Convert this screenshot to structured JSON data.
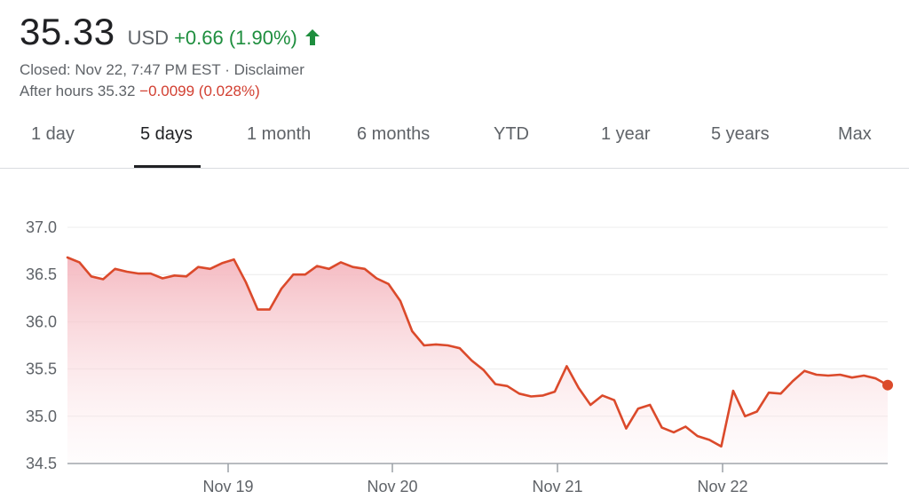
{
  "quote": {
    "price": "35.33",
    "currency": "USD",
    "change": "+0.66 (1.90%)",
    "closed": "Closed: Nov 22, 7:47 PM EST",
    "separator": " · ",
    "disclaimer": "Disclaimer",
    "after_hours_label": "After hours 35.32",
    "after_hours_change": "−0.0099 (0.028%)"
  },
  "tabs": [
    {
      "label": "1 day"
    },
    {
      "label": "5 days",
      "active": true
    },
    {
      "label": "1 month"
    },
    {
      "label": "6 months"
    },
    {
      "label": "YTD"
    },
    {
      "label": "1 year"
    },
    {
      "label": "5 years"
    },
    {
      "label": "Max"
    }
  ],
  "colors": {
    "positive": "#1e8e3e",
    "line": "#db4a2b",
    "fill": "#f6c7cc"
  },
  "icons": {
    "change_direction": "up-arrow-icon"
  },
  "chart_data": {
    "type": "area",
    "title": "",
    "xlabel": "",
    "ylabel": "",
    "ylim": [
      34.5,
      37.0
    ],
    "yticks": [
      "37.0",
      "36.5",
      "36.0",
      "35.5",
      "35.0",
      "34.5"
    ],
    "xticks": [
      "Nov 19",
      "Nov 20",
      "Nov 21",
      "Nov 22"
    ],
    "grid": true,
    "series": [
      {
        "values": [
          36.68,
          36.63,
          36.48,
          36.45,
          36.56,
          36.53,
          36.51,
          36.51,
          36.46,
          36.49,
          36.48,
          36.58,
          36.56,
          36.62,
          36.66,
          36.42,
          36.13,
          36.13,
          36.35,
          36.5,
          36.5,
          36.59,
          36.56,
          36.63,
          36.58,
          36.56,
          36.46,
          36.4,
          36.22,
          35.9,
          35.75,
          35.76,
          35.75,
          35.72,
          35.59,
          35.49,
          35.34,
          35.32,
          35.24,
          35.21,
          35.22,
          35.26,
          35.53,
          35.3,
          35.12,
          35.22,
          35.17,
          34.87,
          35.08,
          35.12,
          34.88,
          34.83,
          34.89,
          34.79,
          34.75,
          34.68,
          35.27,
          35.0,
          35.05,
          35.25,
          35.24,
          35.37,
          35.48,
          35.44,
          35.43,
          35.44,
          35.41,
          35.43,
          35.4,
          35.33
        ]
      }
    ]
  }
}
